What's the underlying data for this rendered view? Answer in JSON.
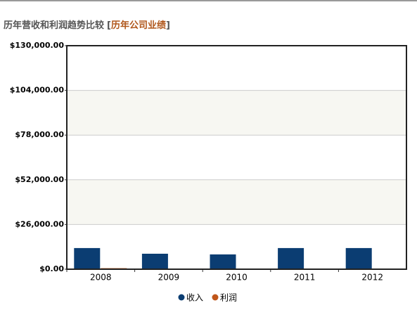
{
  "chart_data": {
    "type": "bar",
    "title": "历年营收和利润趋势比较",
    "title_brackets": [
      "[",
      "]"
    ],
    "subtitle": "历年公司业绩",
    "categories": [
      "2008",
      "2009",
      "2010",
      "2011",
      "2012"
    ],
    "series": [
      {
        "name": "收入",
        "color": "#0b3d72",
        "values": [
          12300,
          9000,
          8600,
          12300,
          12300
        ]
      },
      {
        "name": "利润",
        "color": "#c0561a",
        "values": [
          600,
          0,
          0,
          0,
          0
        ]
      }
    ],
    "ylim": [
      0,
      130000
    ],
    "yticks": [
      {
        "value": 0,
        "label": "$0.00"
      },
      {
        "value": 26000,
        "label": "$26,000.00"
      },
      {
        "value": 52000,
        "label": "$52,000.00"
      },
      {
        "value": 78000,
        "label": "$78,000.00"
      },
      {
        "value": 104000,
        "label": "$104,000.00"
      },
      {
        "value": 130000,
        "label": "$130,000.00"
      }
    ],
    "grid": true,
    "legend": "bottom"
  }
}
